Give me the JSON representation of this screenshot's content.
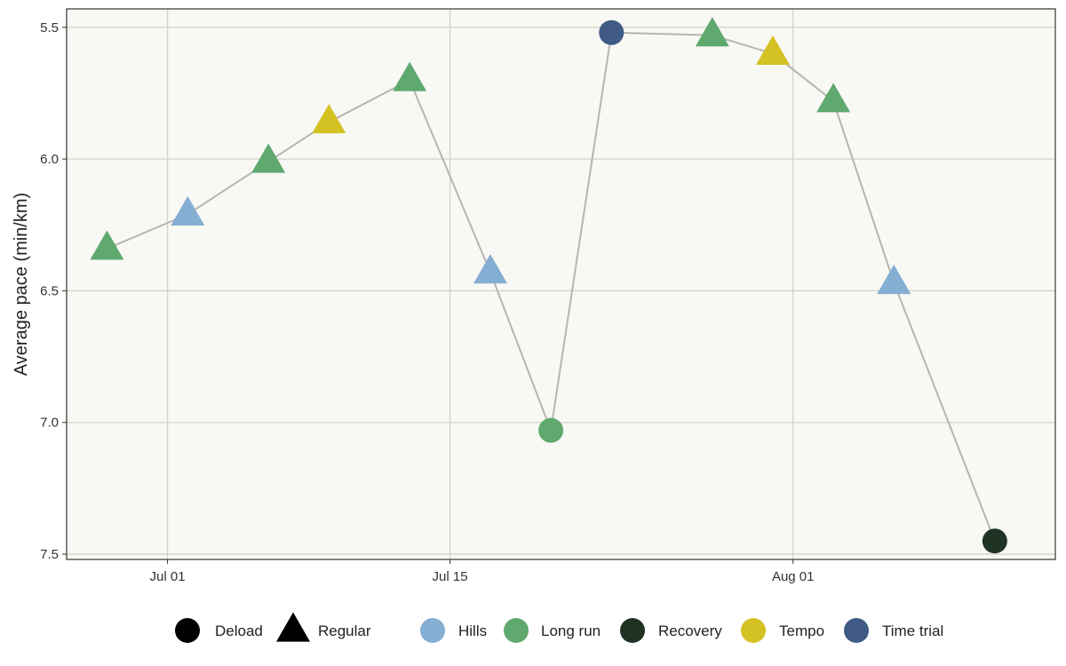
{
  "chart_data": {
    "type": "scatter",
    "xlabel": "",
    "ylabel": "Average pace (min/km)",
    "y_reversed": true,
    "ylim": [
      7.52,
      5.43
    ],
    "xlim": [
      "2025-06-26",
      "2025-08-14"
    ],
    "yticks": [
      5.5,
      6.0,
      6.5,
      7.0,
      7.5
    ],
    "ytick_labels": [
      "5.5",
      "6.0",
      "6.5",
      "7.0",
      "7.5"
    ],
    "xticks": [
      "2025-07-01",
      "2025-07-15",
      "2025-08-01"
    ],
    "xtick_labels": [
      "Jul 01",
      "Jul 15",
      "Aug 01"
    ],
    "grid": true,
    "legend_position": "bottom",
    "connect_points": true,
    "points": [
      {
        "date": "2025-06-28",
        "pace": 6.34,
        "shape": "Regular",
        "type": "Long run"
      },
      {
        "date": "2025-07-02",
        "pace": 6.21,
        "shape": "Regular",
        "type": "Hills"
      },
      {
        "date": "2025-07-06",
        "pace": 6.01,
        "shape": "Regular",
        "type": "Long run"
      },
      {
        "date": "2025-07-09",
        "pace": 5.86,
        "shape": "Regular",
        "type": "Tempo"
      },
      {
        "date": "2025-07-13",
        "pace": 5.7,
        "shape": "Regular",
        "type": "Long run"
      },
      {
        "date": "2025-07-17",
        "pace": 6.43,
        "shape": "Regular",
        "type": "Hills"
      },
      {
        "date": "2025-07-20",
        "pace": 7.03,
        "shape": "Deload",
        "type": "Long run"
      },
      {
        "date": "2025-07-23",
        "pace": 5.52,
        "shape": "Deload",
        "type": "Time trial"
      },
      {
        "date": "2025-07-28",
        "pace": 5.53,
        "shape": "Regular",
        "type": "Long run"
      },
      {
        "date": "2025-07-31",
        "pace": 5.6,
        "shape": "Regular",
        "type": "Tempo"
      },
      {
        "date": "2025-08-03",
        "pace": 5.78,
        "shape": "Regular",
        "type": "Long run"
      },
      {
        "date": "2025-08-06",
        "pace": 6.47,
        "shape": "Regular",
        "type": "Hills"
      },
      {
        "date": "2025-08-11",
        "pace": 7.45,
        "shape": "Deload",
        "type": "Recovery"
      }
    ],
    "legend_shape": [
      {
        "name": "Deload",
        "shape": "circle"
      },
      {
        "name": "Regular",
        "shape": "triangle"
      }
    ],
    "legend_color": [
      {
        "name": "Hills",
        "color": "#85AED3"
      },
      {
        "name": "Long run",
        "color": "#5FA96E"
      },
      {
        "name": "Recovery",
        "color": "#1F3324"
      },
      {
        "name": "Tempo",
        "color": "#D4C225"
      },
      {
        "name": "Time trial",
        "color": "#3E5A85"
      }
    ],
    "colors": {
      "panel_background": "#F8F8F4",
      "grid": "#D6D4C6",
      "line": "#B5B5B1",
      "panel_border": "#333333"
    }
  }
}
